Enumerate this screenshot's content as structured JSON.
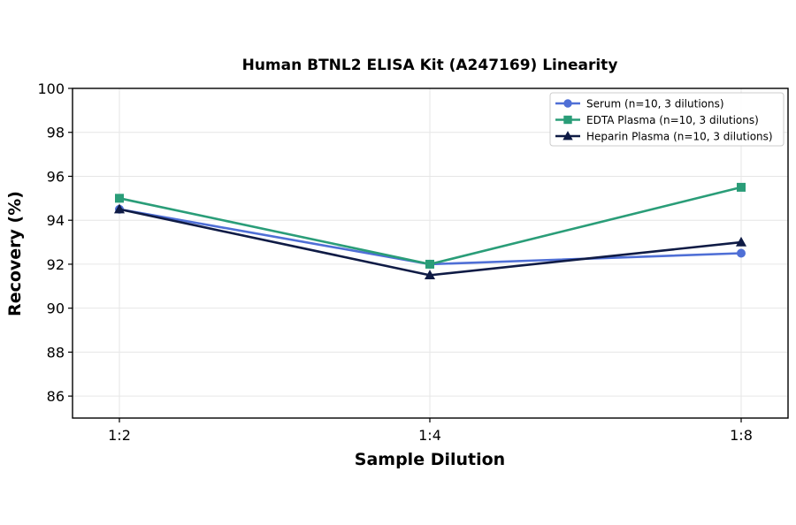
{
  "chart_data": {
    "type": "line",
    "title": "Human BTNL2 ELISA Kit (A247169) Linearity",
    "xlabel": "Sample Dilution",
    "ylabel": "Recovery (%)",
    "categories": [
      "1:2",
      "1:4",
      "1:8"
    ],
    "ylim": [
      85,
      100
    ],
    "yticks": [
      86,
      88,
      90,
      92,
      94,
      96,
      98,
      100
    ],
    "grid": true,
    "legend_position": "top-right",
    "series": [
      {
        "name": "Serum (n=10, 3 dilutions)",
        "values": [
          94.5,
          92.0,
          92.5
        ],
        "color": "#4f6fd6",
        "marker": "circle"
      },
      {
        "name": "EDTA Plasma (n=10, 3 dilutions)",
        "values": [
          95.0,
          92.0,
          95.5
        ],
        "color": "#2a9d78",
        "marker": "square"
      },
      {
        "name": "Heparin Plasma (n=10, 3 dilutions)",
        "values": [
          94.5,
          91.5,
          93.0
        ],
        "color": "#0f1b45",
        "marker": "triangle"
      }
    ]
  }
}
